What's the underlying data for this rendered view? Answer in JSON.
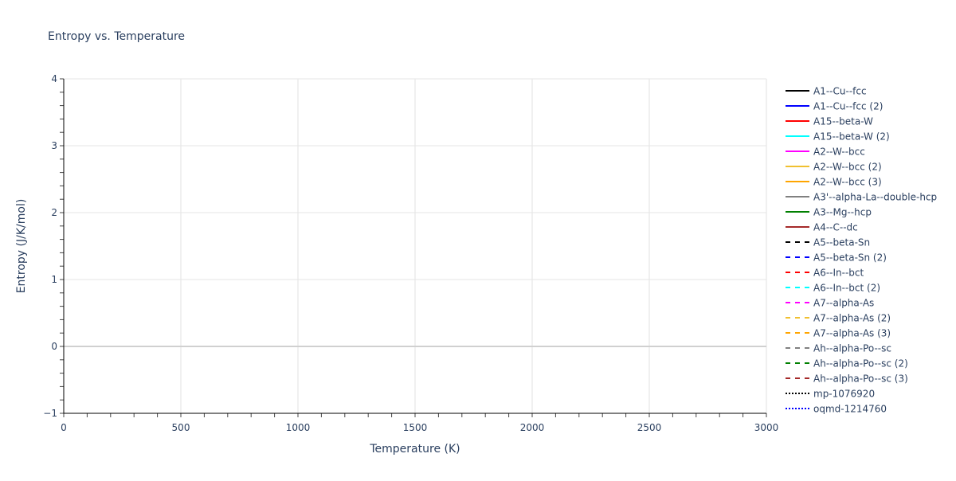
{
  "chart_data": {
    "type": "line",
    "title": "Entropy vs. Temperature",
    "xlabel": "Temperature (K)",
    "ylabel": "Entropy (J/K/mol)",
    "xlim": [
      0,
      3000
    ],
    "ylim": [
      -1,
      4
    ],
    "x_ticks": [
      0,
      500,
      1000,
      1500,
      2000,
      2500,
      3000
    ],
    "y_ticks": [
      -1,
      0,
      1,
      2,
      3,
      4
    ],
    "y_tick_labels": [
      "−1",
      "0",
      "1",
      "2",
      "3",
      "4"
    ],
    "grid": true,
    "legend_placement": "right",
    "series": [
      {
        "name": "A1--Cu--fcc",
        "color": "#000000",
        "dash": "solid",
        "x": [],
        "y": []
      },
      {
        "name": "A1--Cu--fcc (2)",
        "color": "#0000ff",
        "dash": "solid",
        "x": [],
        "y": []
      },
      {
        "name": "A15--beta-W",
        "color": "#ff0000",
        "dash": "solid",
        "x": [],
        "y": []
      },
      {
        "name": "A15--beta-W (2)",
        "color": "#00ffff",
        "dash": "solid",
        "x": [],
        "y": []
      },
      {
        "name": "A2--W--bcc",
        "color": "#ff00ff",
        "dash": "solid",
        "x": [],
        "y": []
      },
      {
        "name": "A2--W--bcc (2)",
        "color": "#f0c030",
        "dash": "solid",
        "x": [],
        "y": []
      },
      {
        "name": "A2--W--bcc (3)",
        "color": "#ffa500",
        "dash": "solid",
        "x": [],
        "y": []
      },
      {
        "name": "A3'--alpha-La--double-hcp",
        "color": "#808080",
        "dash": "solid",
        "x": [],
        "y": []
      },
      {
        "name": "A3--Mg--hcp",
        "color": "#008000",
        "dash": "solid",
        "x": [],
        "y": []
      },
      {
        "name": "A4--C--dc",
        "color": "#a52a2a",
        "dash": "solid",
        "x": [],
        "y": []
      },
      {
        "name": "A5--beta-Sn",
        "color": "#000000",
        "dash": "dash",
        "x": [],
        "y": []
      },
      {
        "name": "A5--beta-Sn (2)",
        "color": "#0000ff",
        "dash": "dash",
        "x": [],
        "y": []
      },
      {
        "name": "A6--In--bct",
        "color": "#ff0000",
        "dash": "dash",
        "x": [],
        "y": []
      },
      {
        "name": "A6--In--bct (2)",
        "color": "#00ffff",
        "dash": "dash",
        "x": [],
        "y": []
      },
      {
        "name": "A7--alpha-As",
        "color": "#ff00ff",
        "dash": "dash",
        "x": [],
        "y": []
      },
      {
        "name": "A7--alpha-As (2)",
        "color": "#f0c030",
        "dash": "dash",
        "x": [],
        "y": []
      },
      {
        "name": "A7--alpha-As (3)",
        "color": "#ffa500",
        "dash": "dash",
        "x": [],
        "y": []
      },
      {
        "name": "Ah--alpha-Po--sc",
        "color": "#808080",
        "dash": "dash",
        "x": [],
        "y": []
      },
      {
        "name": "Ah--alpha-Po--sc (2)",
        "color": "#008000",
        "dash": "dash",
        "x": [],
        "y": []
      },
      {
        "name": "Ah--alpha-Po--sc (3)",
        "color": "#a52a2a",
        "dash": "dash",
        "x": [],
        "y": []
      },
      {
        "name": "mp-1076920",
        "color": "#000000",
        "dash": "dot",
        "x": [],
        "y": []
      },
      {
        "name": "oqmd-1214760",
        "color": "#0000ff",
        "dash": "dot",
        "x": [],
        "y": []
      }
    ]
  }
}
